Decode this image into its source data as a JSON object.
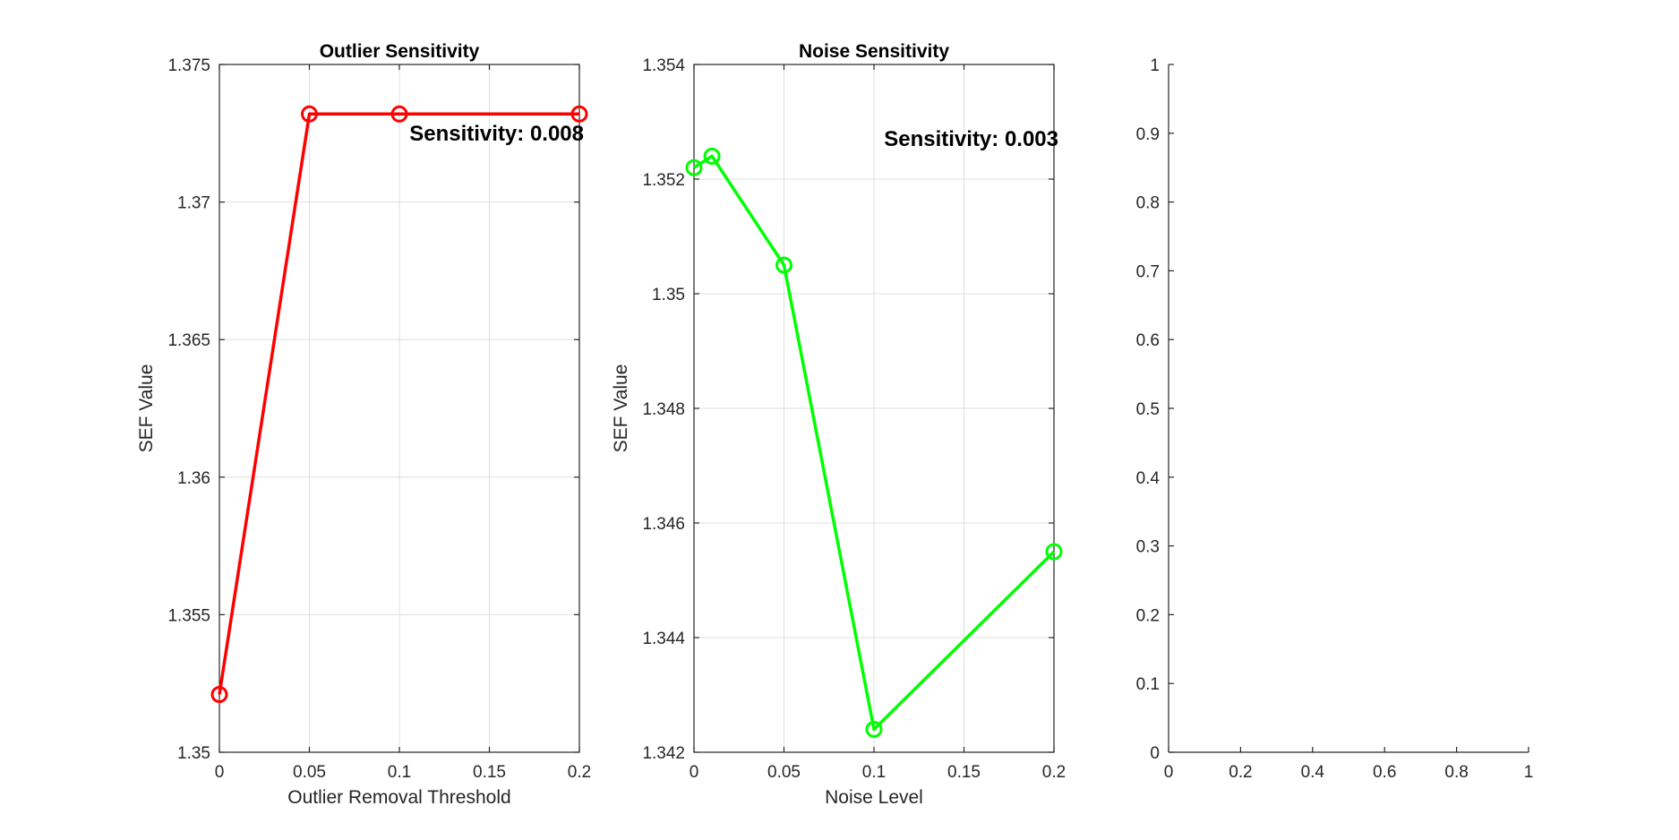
{
  "chart_data": [
    {
      "type": "line",
      "title": "Outlier Sensitivity",
      "xlabel": "Outlier Removal Threshold",
      "ylabel": "SEF Value",
      "xlim": [
        0,
        0.2
      ],
      "ylim": [
        1.35,
        1.375
      ],
      "xticks": [
        0,
        0.05,
        0.1,
        0.15,
        0.2
      ],
      "xtick_labels": [
        "0",
        "0.05",
        "0.1",
        "0.15",
        "0.2"
      ],
      "yticks": [
        1.35,
        1.355,
        1.36,
        1.365,
        1.37,
        1.375
      ],
      "ytick_labels": [
        "1.35",
        "1.355",
        "1.36",
        "1.365",
        "1.37",
        "1.375"
      ],
      "grid": true,
      "series": [
        {
          "color": "#ff0000",
          "marker": "circle",
          "x": [
            0,
            0.05,
            0.1,
            0.2
          ],
          "y": [
            1.3521,
            1.3732,
            1.3732,
            1.3732
          ]
        }
      ],
      "annotation": {
        "text": "Sensitivity: 0.008",
        "x": 0.1,
        "y": 1.3725
      }
    },
    {
      "type": "line",
      "title": "Noise Sensitivity",
      "xlabel": "Noise Level",
      "ylabel": "SEF Value",
      "xlim": [
        0,
        0.2
      ],
      "ylim": [
        1.342,
        1.354
      ],
      "xticks": [
        0,
        0.05,
        0.1,
        0.15,
        0.2
      ],
      "xtick_labels": [
        "0",
        "0.05",
        "0.1",
        "0.15",
        "0.2"
      ],
      "yticks": [
        1.342,
        1.344,
        1.346,
        1.348,
        1.35,
        1.352,
        1.354
      ],
      "ytick_labels": [
        "1.342",
        "1.344",
        "1.346",
        "1.348",
        "1.35",
        "1.352",
        "1.354"
      ],
      "grid": true,
      "series": [
        {
          "color": "#00ff00",
          "marker": "circle",
          "x": [
            0,
            0.01,
            0.05,
            0.1,
            0.2
          ],
          "y": [
            1.3522,
            1.3524,
            1.3505,
            1.3424,
            1.3455
          ]
        }
      ],
      "annotation": {
        "text": "Sensitivity: 0.003",
        "x": 0.1,
        "y": 1.3527
      }
    },
    {
      "type": "line",
      "title": "",
      "xlabel": "",
      "ylabel": "",
      "xlim": [
        0,
        1
      ],
      "ylim": [
        0,
        1
      ],
      "xticks": [
        0,
        0.2,
        0.4,
        0.6,
        0.8,
        1
      ],
      "xtick_labels": [
        "0",
        "0.2",
        "0.4",
        "0.6",
        "0.8",
        "1"
      ],
      "yticks": [
        0,
        0.1,
        0.2,
        0.3,
        0.4,
        0.5,
        0.6,
        0.7,
        0.8,
        0.9,
        1
      ],
      "ytick_labels": [
        "0",
        "0.1",
        "0.2",
        "0.3",
        "0.4",
        "0.5",
        "0.6",
        "0.7",
        "0.8",
        "0.9",
        "1"
      ],
      "grid": false,
      "series": []
    }
  ]
}
